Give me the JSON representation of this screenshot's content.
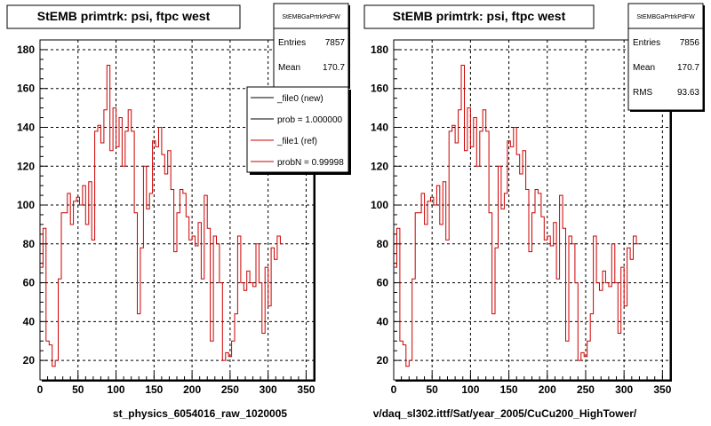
{
  "chart_data": [
    {
      "type": "step-histogram",
      "title": "StEMB primtrk: psi, ftpc west",
      "stats": {
        "header": "StEMBGaPrtrkPdFW",
        "rows": [
          {
            "label": "Entries",
            "value": "7857"
          },
          {
            "label": "Mean",
            "value": "170.7"
          }
        ]
      },
      "legend": {
        "entries": [
          {
            "label": "_file0 (new)",
            "color": "#000000"
          },
          {
            "label": "prob = 1.000000",
            "color": "#000000"
          },
          {
            "label": "_file1 (ref)",
            "color": "#cc0000"
          },
          {
            "label": "probN = 0.99998",
            "color": "#cc0000"
          }
        ]
      },
      "xlabel": "st_physics_6054016_raw_1020005",
      "xlim": [
        0,
        360
      ],
      "ylim": [
        10,
        185
      ],
      "xticks": [
        0,
        50,
        100,
        150,
        200,
        250,
        300,
        350
      ],
      "yticks": [
        20,
        40,
        60,
        80,
        100,
        120,
        140,
        160,
        180
      ],
      "grid": true,
      "bin_width": 4,
      "series": [
        {
          "color": "#cc0000",
          "values": [
            68,
            88,
            30,
            28,
            17,
            20,
            62,
            96,
            96,
            106,
            90,
            102,
            104,
            100,
            110,
            90,
            112,
            82,
            138,
            141,
            132,
            149,
            172,
            128,
            150,
            130,
            145,
            120,
            138,
            149,
            138,
            96,
            44,
            78,
            120,
            98,
            106,
            133,
            130,
            140,
            126,
            116,
            128,
            108,
            76,
            96,
            108,
            106,
            94,
            82,
            84,
            79,
            91,
            62,
            105,
            88,
            30,
            84,
            80,
            60,
            20,
            24,
            22,
            30,
            44,
            84,
            60,
            56,
            66,
            60,
            58,
            80,
            60,
            34,
            68,
            48,
            78,
            72,
            84,
            80
          ]
        }
      ]
    },
    {
      "type": "step-histogram",
      "title": "StEMB primtrk: psi, ftpc west",
      "stats": {
        "header": "StEMBGaPrtrkPdFW",
        "rows": [
          {
            "label": "Entries",
            "value": "7856"
          },
          {
            "label": "Mean",
            "value": "170.7"
          },
          {
            "label": "RMS",
            "value": "93.63"
          }
        ]
      },
      "xlabel": "v/daq_sl302.ittf/Sat/year_2005/CuCu200_HighTower/",
      "xlim": [
        0,
        360
      ],
      "ylim": [
        10,
        185
      ],
      "xticks": [
        0,
        50,
        100,
        150,
        200,
        250,
        300,
        350
      ],
      "yticks": [
        20,
        40,
        60,
        80,
        100,
        120,
        140,
        160,
        180
      ],
      "grid": true,
      "bin_width": 4,
      "series": [
        {
          "color": "#cc0000",
          "values": [
            68,
            88,
            30,
            28,
            17,
            20,
            62,
            96,
            96,
            106,
            90,
            102,
            104,
            100,
            110,
            90,
            112,
            82,
            138,
            141,
            132,
            149,
            172,
            128,
            150,
            130,
            145,
            120,
            138,
            149,
            138,
            96,
            44,
            78,
            120,
            98,
            106,
            133,
            130,
            140,
            126,
            116,
            128,
            108,
            76,
            96,
            108,
            106,
            94,
            82,
            84,
            79,
            91,
            62,
            105,
            88,
            30,
            84,
            80,
            60,
            20,
            24,
            22,
            30,
            44,
            84,
            60,
            56,
            66,
            60,
            58,
            80,
            60,
            34,
            68,
            48,
            78,
            72,
            84,
            80
          ]
        }
      ]
    }
  ]
}
